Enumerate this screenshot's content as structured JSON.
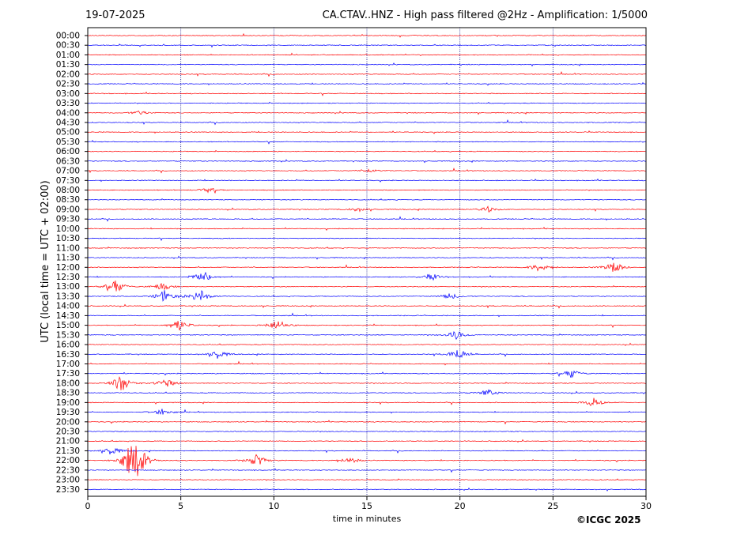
{
  "header": {
    "date": "19-07-2025",
    "title": "CA.CTAV..HNZ - High pass filtered @2Hz - Amplification: 1/5000"
  },
  "footer": {
    "copyright": "©ICGC 2025"
  },
  "colors": {
    "red_trace": "#ff0000",
    "blue_trace": "#0000ff",
    "grid": "#000080"
  },
  "chart_data": {
    "type": "line",
    "title": "CA.CTAV..HNZ - High pass filtered @2Hz - Amplification: 1/5000",
    "xlabel": "time in minutes",
    "ylabel": "UTC (local time = UTC + 02:00)",
    "xlim": [
      0,
      30
    ],
    "x_ticks": [
      0,
      5,
      10,
      15,
      20,
      25,
      30
    ],
    "vertical_gridlines": [
      5,
      10,
      15,
      20,
      25
    ],
    "row_labels": [
      "00:00",
      "00:30",
      "01:00",
      "01:30",
      "02:00",
      "02:30",
      "03:00",
      "03:30",
      "04:00",
      "04:30",
      "05:00",
      "05:30",
      "06:00",
      "06:30",
      "07:00",
      "07:30",
      "08:00",
      "08:30",
      "09:00",
      "09:30",
      "10:00",
      "10:30",
      "11:00",
      "11:30",
      "12:00",
      "12:30",
      "13:00",
      "13:30",
      "14:00",
      "14:30",
      "15:00",
      "15:30",
      "16:00",
      "16:30",
      "17:00",
      "17:30",
      "18:00",
      "18:30",
      "19:00",
      "19:30",
      "20:00",
      "20:30",
      "21:00",
      "21:30",
      "22:00",
      "22:30",
      "23:00",
      "23:30"
    ],
    "row_colors": "alternating red (on the hour) and blue (half hour)",
    "events": [
      {
        "row": "04:00",
        "minute": 2.8,
        "amplitude": 0.3
      },
      {
        "row": "07:00",
        "minute": 15.1,
        "amplitude": 0.25
      },
      {
        "row": "08:00",
        "minute": 6.5,
        "amplitude": 0.3
      },
      {
        "row": "09:00",
        "minute": 14.5,
        "amplitude": 0.3
      },
      {
        "row": "09:00",
        "minute": 21.5,
        "amplitude": 0.35
      },
      {
        "row": "12:00",
        "minute": 24.3,
        "amplitude": 0.6
      },
      {
        "row": "12:00",
        "minute": 28.3,
        "amplitude": 0.8
      },
      {
        "row": "12:30",
        "minute": 6.2,
        "amplitude": 0.8
      },
      {
        "row": "12:30",
        "minute": 18.5,
        "amplitude": 0.45
      },
      {
        "row": "13:00",
        "minute": 1.5,
        "amplitude": 0.9
      },
      {
        "row": "13:00",
        "minute": 4.0,
        "amplitude": 0.5
      },
      {
        "row": "13:30",
        "minute": 6.0,
        "amplitude": 1.0
      },
      {
        "row": "13:30",
        "minute": 4.1,
        "amplitude": 0.8
      },
      {
        "row": "13:30",
        "minute": 19.5,
        "amplitude": 0.4
      },
      {
        "row": "15:00",
        "minute": 4.9,
        "amplitude": 0.8
      },
      {
        "row": "15:00",
        "minute": 10.2,
        "amplitude": 0.8
      },
      {
        "row": "15:30",
        "minute": 19.8,
        "amplitude": 0.6
      },
      {
        "row": "16:30",
        "minute": 7.0,
        "amplitude": 0.6
      },
      {
        "row": "16:30",
        "minute": 19.9,
        "amplitude": 0.8
      },
      {
        "row": "17:30",
        "minute": 26.0,
        "amplitude": 0.6
      },
      {
        "row": "18:00",
        "minute": 1.8,
        "amplitude": 1.2
      },
      {
        "row": "18:00",
        "minute": 4.2,
        "amplitude": 0.6
      },
      {
        "row": "18:30",
        "minute": 21.5,
        "amplitude": 0.5
      },
      {
        "row": "19:00",
        "minute": 27.2,
        "amplitude": 0.6
      },
      {
        "row": "19:30",
        "minute": 4.0,
        "amplitude": 0.4
      },
      {
        "row": "21:30",
        "minute": 1.3,
        "amplitude": 0.6
      },
      {
        "row": "22:00",
        "minute": 2.7,
        "amplitude": 2.0
      },
      {
        "row": "22:00",
        "minute": 2.2,
        "amplitude": 1.3
      },
      {
        "row": "22:00",
        "minute": 9.1,
        "amplitude": 0.8
      },
      {
        "row": "22:00",
        "minute": 14.1,
        "amplitude": 0.4
      }
    ]
  }
}
